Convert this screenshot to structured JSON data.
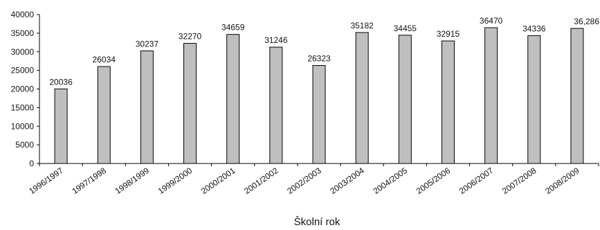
{
  "chart_data": {
    "type": "bar",
    "categories": [
      "1996/1997",
      "1997/1998",
      "1998/1999",
      "1999/2000",
      "2000/2001",
      "2001/2002",
      "2002/2003",
      "2003/2004",
      "2004/2005",
      "2005/2006",
      "2006/2007",
      "2007/2008",
      "2008/2009"
    ],
    "values": [
      20036,
      26034,
      30237,
      32270,
      34659,
      31246,
      26323,
      35182,
      34455,
      32915,
      36470,
      34336,
      36286
    ],
    "value_labels": [
      "20036",
      "26034",
      "30237",
      "32270",
      "34659",
      "31246",
      "26323",
      "35182",
      "34455",
      "32915",
      "36470",
      "34336",
      "36,286"
    ],
    "title": "",
    "xlabel": "Školní rok",
    "ylabel": "",
    "ylim": [
      0,
      40000
    ],
    "yticks": [
      0,
      5000,
      10000,
      15000,
      20000,
      25000,
      30000,
      35000,
      40000
    ],
    "ytick_labels": [
      "0",
      "5000",
      "10000",
      "15000",
      "20000",
      "25000",
      "30000",
      "35000",
      "40000"
    ],
    "grid": false,
    "legend": "none",
    "colors": {
      "bar_fill": "#bfbfbf",
      "bar_stroke": "#000000",
      "axis": "#000000",
      "text": "#111111"
    }
  }
}
